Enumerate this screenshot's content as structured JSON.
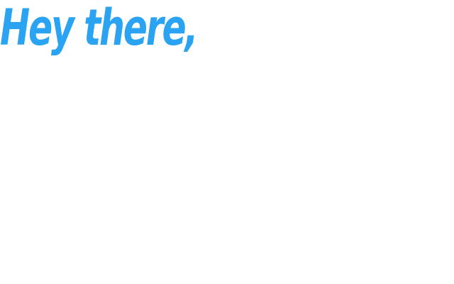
{
  "greeting": {
    "text": "Hey there,",
    "color": "#2aa3f2"
  },
  "background_color": "#ffffff"
}
